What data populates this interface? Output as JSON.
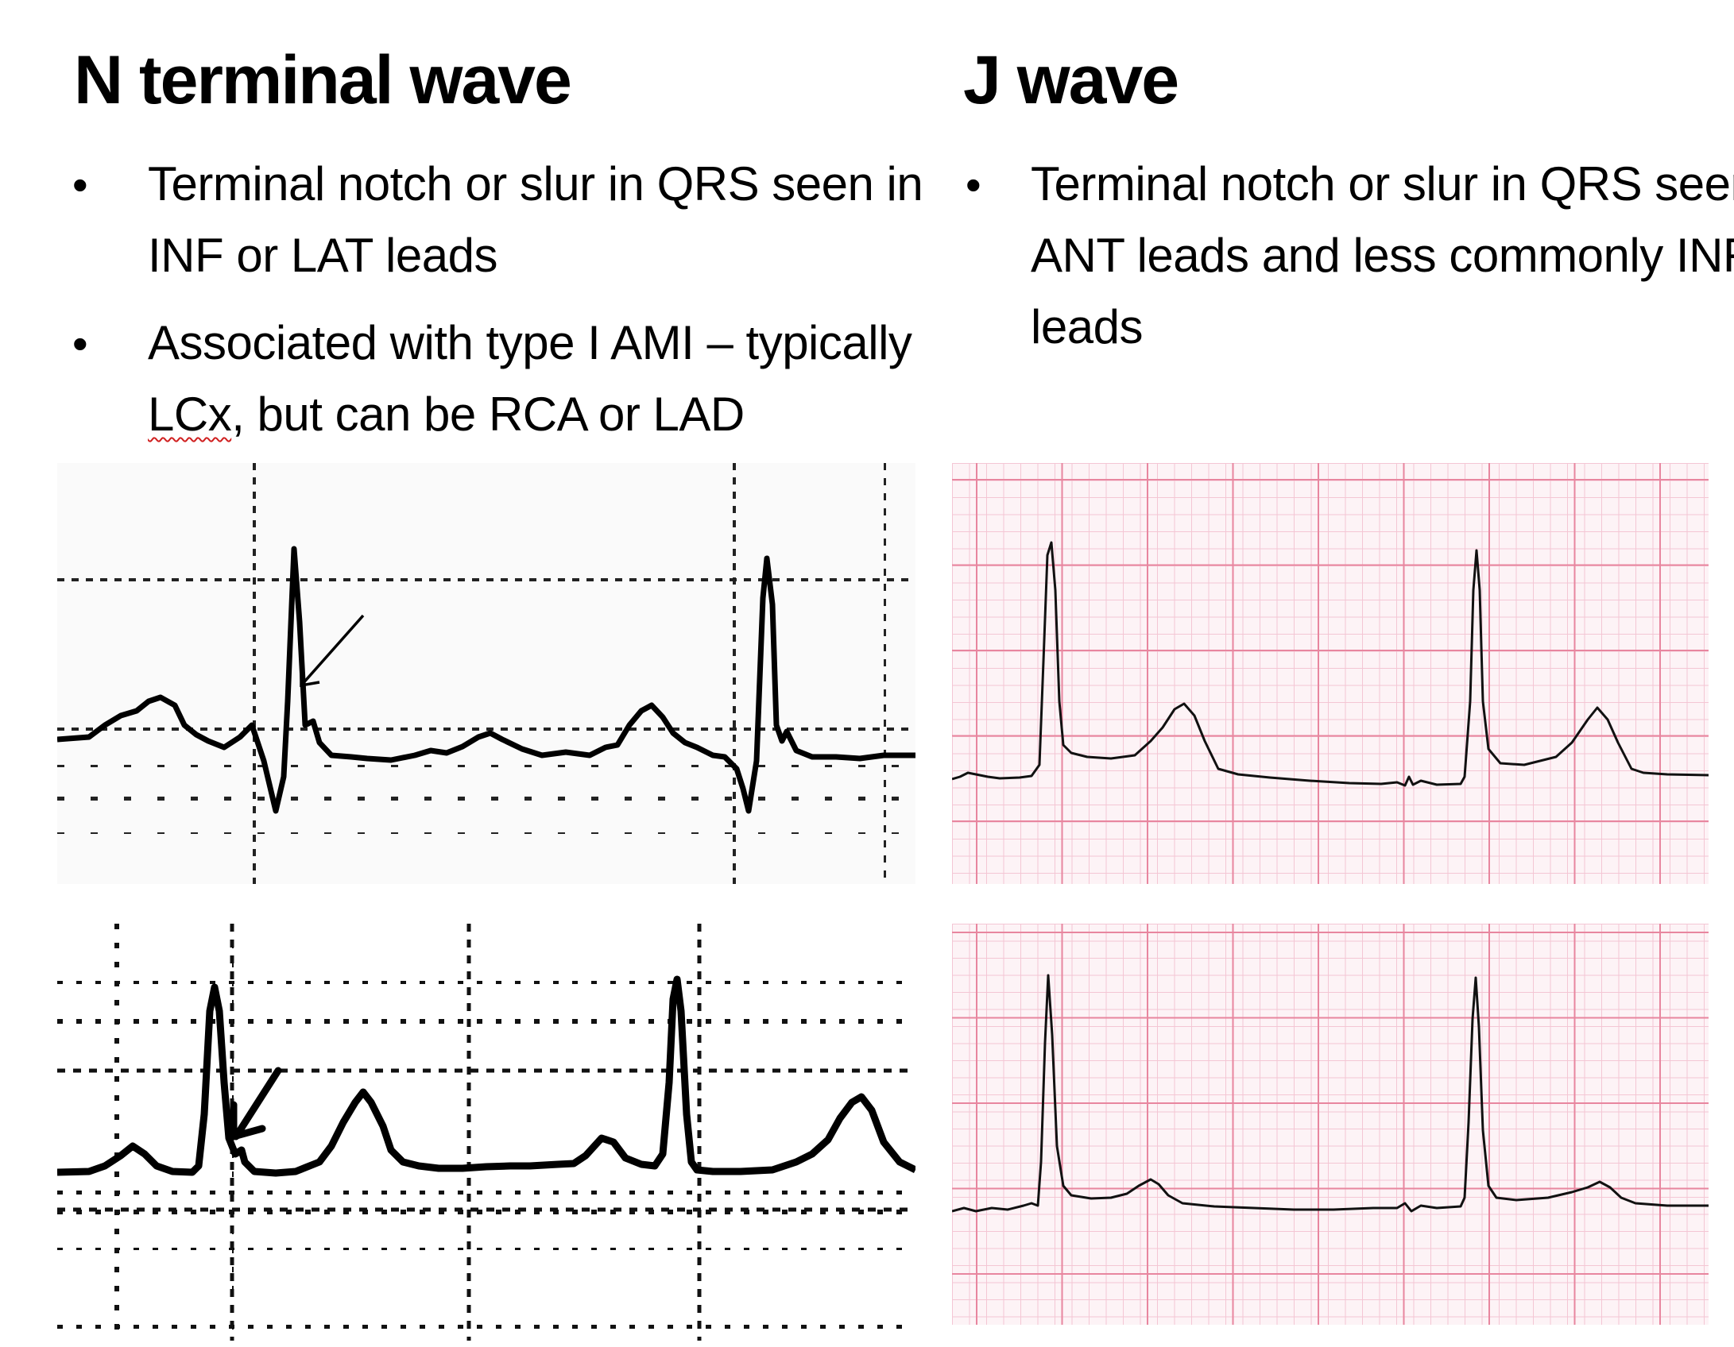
{
  "left": {
    "title": "N terminal wave",
    "bullets": [
      {
        "line1": "Terminal notch or slur in QRS seen in",
        "line2": "INF or LAT leads"
      },
      {
        "line1": "Associated with type I AMI – typically",
        "line2_underlined": "LCx",
        "line2_rest": ", but can be RCA or LAD"
      }
    ]
  },
  "right": {
    "title": "J wave",
    "bullets": [
      {
        "line1": "Terminal notch or slur in QRS seen in",
        "line2": "ANT leads and less commonly INF",
        "line3": "leads"
      }
    ]
  },
  "bullet_symbol": "•",
  "colors": {
    "text": "#000000",
    "trace": "#000000",
    "grid_dot": "#111111",
    "pink_minor": "#f4c6d4",
    "pink_major": "#e8869f",
    "pink_bg": "#fdf3f6",
    "spell_underline": "#d02020"
  },
  "icons": [
    "arrow-icon"
  ]
}
